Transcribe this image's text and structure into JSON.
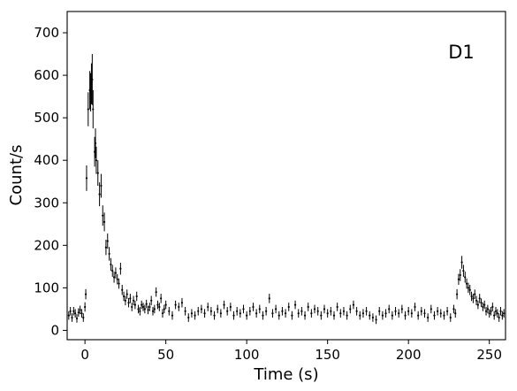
{
  "chart_data": {
    "type": "scatter",
    "title": "",
    "xlabel": "Time (s)",
    "ylabel": "Count/s",
    "xlim": [
      -11,
      260
    ],
    "ylim": [
      -22,
      750
    ],
    "xticks": [
      0,
      50,
      100,
      150,
      200,
      250
    ],
    "yticks": [
      0,
      100,
      200,
      300,
      400,
      500,
      600,
      700
    ],
    "grid": false,
    "annotation": "D1",
    "marker": "point with vertical error bar",
    "color": "#000000",
    "series": [
      {
        "points": [
          [
            -10,
            35,
            10
          ],
          [
            -9,
            45,
            10
          ],
          [
            -8,
            30,
            10
          ],
          [
            -7,
            45,
            10
          ],
          [
            -6,
            40,
            10
          ],
          [
            -5,
            28,
            10
          ],
          [
            -4,
            42,
            10
          ],
          [
            -3,
            48,
            10
          ],
          [
            -2,
            40,
            10
          ],
          [
            -1,
            30,
            10
          ],
          [
            0,
            55,
            11
          ],
          [
            0.5,
            85,
            12
          ],
          [
            1,
            358,
            30
          ],
          [
            2,
            520,
            40
          ],
          [
            3,
            565,
            45
          ],
          [
            3.5,
            560,
            45
          ],
          [
            4,
            580,
            48
          ],
          [
            4.5,
            590,
            60
          ],
          [
            5,
            520,
            45
          ],
          [
            6,
            420,
            35
          ],
          [
            6.5,
            440,
            35
          ],
          [
            7,
            400,
            32
          ],
          [
            8,
            370,
            30
          ],
          [
            9,
            320,
            28
          ],
          [
            10,
            340,
            28
          ],
          [
            11,
            270,
            24
          ],
          [
            12,
            255,
            22
          ],
          [
            13,
            195,
            18
          ],
          [
            14,
            210,
            18
          ],
          [
            15,
            180,
            16
          ],
          [
            16,
            155,
            15
          ],
          [
            17,
            140,
            14
          ],
          [
            18,
            125,
            13
          ],
          [
            19,
            135,
            13
          ],
          [
            20,
            120,
            12
          ],
          [
            21,
            110,
            12
          ],
          [
            22,
            145,
            14
          ],
          [
            23,
            95,
            12
          ],
          [
            24,
            80,
            11
          ],
          [
            25,
            70,
            11
          ],
          [
            26,
            85,
            11
          ],
          [
            27,
            65,
            11
          ],
          [
            28,
            75,
            11
          ],
          [
            29,
            55,
            10
          ],
          [
            30,
            70,
            11
          ],
          [
            31,
            60,
            10
          ],
          [
            32,
            80,
            11
          ],
          [
            33,
            50,
            10
          ],
          [
            34,
            45,
            10
          ],
          [
            35,
            60,
            10
          ],
          [
            36,
            55,
            10
          ],
          [
            37,
            50,
            10
          ],
          [
            38,
            62,
            10
          ],
          [
            39,
            48,
            10
          ],
          [
            40,
            55,
            10
          ],
          [
            41,
            70,
            11
          ],
          [
            42,
            45,
            10
          ],
          [
            43,
            50,
            10
          ],
          [
            44,
            90,
            11
          ],
          [
            45,
            60,
            10
          ],
          [
            46,
            55,
            10
          ],
          [
            47,
            75,
            11
          ],
          [
            48,
            40,
            10
          ],
          [
            49,
            50,
            10
          ],
          [
            50,
            60,
            10
          ],
          [
            52,
            45,
            10
          ],
          [
            54,
            35,
            10
          ],
          [
            56,
            60,
            10
          ],
          [
            58,
            55,
            10
          ],
          [
            60,
            65,
            11
          ],
          [
            62,
            45,
            10
          ],
          [
            64,
            30,
            10
          ],
          [
            66,
            40,
            10
          ],
          [
            68,
            35,
            10
          ],
          [
            70,
            45,
            10
          ],
          [
            72,
            50,
            10
          ],
          [
            74,
            40,
            10
          ],
          [
            76,
            55,
            10
          ],
          [
            78,
            45,
            10
          ],
          [
            80,
            35,
            10
          ],
          [
            82,
            50,
            10
          ],
          [
            84,
            40,
            10
          ],
          [
            86,
            60,
            10
          ],
          [
            88,
            45,
            10
          ],
          [
            90,
            55,
            10
          ],
          [
            92,
            35,
            10
          ],
          [
            94,
            45,
            10
          ],
          [
            96,
            40,
            10
          ],
          [
            98,
            50,
            10
          ],
          [
            100,
            35,
            10
          ],
          [
            102,
            45,
            10
          ],
          [
            104,
            55,
            10
          ],
          [
            106,
            40,
            10
          ],
          [
            108,
            50,
            10
          ],
          [
            110,
            35,
            10
          ],
          [
            112,
            45,
            10
          ],
          [
            114,
            75,
            11
          ],
          [
            116,
            40,
            10
          ],
          [
            118,
            50,
            10
          ],
          [
            120,
            35,
            10
          ],
          [
            122,
            45,
            10
          ],
          [
            124,
            40,
            10
          ],
          [
            126,
            55,
            10
          ],
          [
            128,
            35,
            10
          ],
          [
            130,
            60,
            10
          ],
          [
            132,
            40,
            10
          ],
          [
            134,
            45,
            10
          ],
          [
            136,
            35,
            10
          ],
          [
            138,
            55,
            10
          ],
          [
            140,
            40,
            10
          ],
          [
            142,
            50,
            10
          ],
          [
            144,
            45,
            10
          ],
          [
            146,
            35,
            10
          ],
          [
            148,
            50,
            10
          ],
          [
            150,
            40,
            10
          ],
          [
            152,
            45,
            10
          ],
          [
            154,
            35,
            10
          ],
          [
            156,
            55,
            10
          ],
          [
            158,
            40,
            10
          ],
          [
            160,
            45,
            10
          ],
          [
            162,
            35,
            10
          ],
          [
            164,
            50,
            10
          ],
          [
            166,
            60,
            10
          ],
          [
            168,
            45,
            10
          ],
          [
            170,
            35,
            10
          ],
          [
            172,
            40,
            10
          ],
          [
            174,
            45,
            10
          ],
          [
            176,
            35,
            10
          ],
          [
            178,
            30,
            10
          ],
          [
            180,
            25,
            10
          ],
          [
            182,
            45,
            10
          ],
          [
            184,
            35,
            10
          ],
          [
            186,
            40,
            10
          ],
          [
            188,
            50,
            10
          ],
          [
            190,
            35,
            10
          ],
          [
            192,
            45,
            10
          ],
          [
            194,
            40,
            10
          ],
          [
            196,
            50,
            10
          ],
          [
            198,
            35,
            10
          ],
          [
            200,
            45,
            10
          ],
          [
            202,
            40,
            10
          ],
          [
            204,
            55,
            10
          ],
          [
            206,
            35,
            10
          ],
          [
            208,
            45,
            10
          ],
          [
            210,
            40,
            10
          ],
          [
            212,
            30,
            10
          ],
          [
            214,
            50,
            10
          ],
          [
            216,
            35,
            10
          ],
          [
            218,
            45,
            10
          ],
          [
            220,
            40,
            10
          ],
          [
            222,
            35,
            10
          ],
          [
            224,
            45,
            10
          ],
          [
            226,
            30,
            10
          ],
          [
            228,
            50,
            10
          ],
          [
            229,
            40,
            10
          ],
          [
            230,
            85,
            12
          ],
          [
            231,
            120,
            13
          ],
          [
            232,
            130,
            14
          ],
          [
            233,
            160,
            15
          ],
          [
            234,
            140,
            14
          ],
          [
            235,
            125,
            13
          ],
          [
            236,
            110,
            12
          ],
          [
            237,
            100,
            12
          ],
          [
            238,
            95,
            12
          ],
          [
            239,
            80,
            11
          ],
          [
            240,
            75,
            11
          ],
          [
            241,
            85,
            11
          ],
          [
            242,
            70,
            11
          ],
          [
            243,
            60,
            10
          ],
          [
            244,
            75,
            11
          ],
          [
            245,
            65,
            10
          ],
          [
            246,
            55,
            10
          ],
          [
            247,
            60,
            10
          ],
          [
            248,
            45,
            10
          ],
          [
            249,
            50,
            10
          ],
          [
            250,
            40,
            10
          ],
          [
            251,
            45,
            10
          ],
          [
            252,
            55,
            10
          ],
          [
            253,
            35,
            10
          ],
          [
            254,
            45,
            10
          ],
          [
            255,
            40,
            10
          ],
          [
            256,
            30,
            10
          ],
          [
            257,
            45,
            10
          ],
          [
            258,
            35,
            10
          ],
          [
            259,
            40,
            10
          ]
        ]
      }
    ]
  }
}
